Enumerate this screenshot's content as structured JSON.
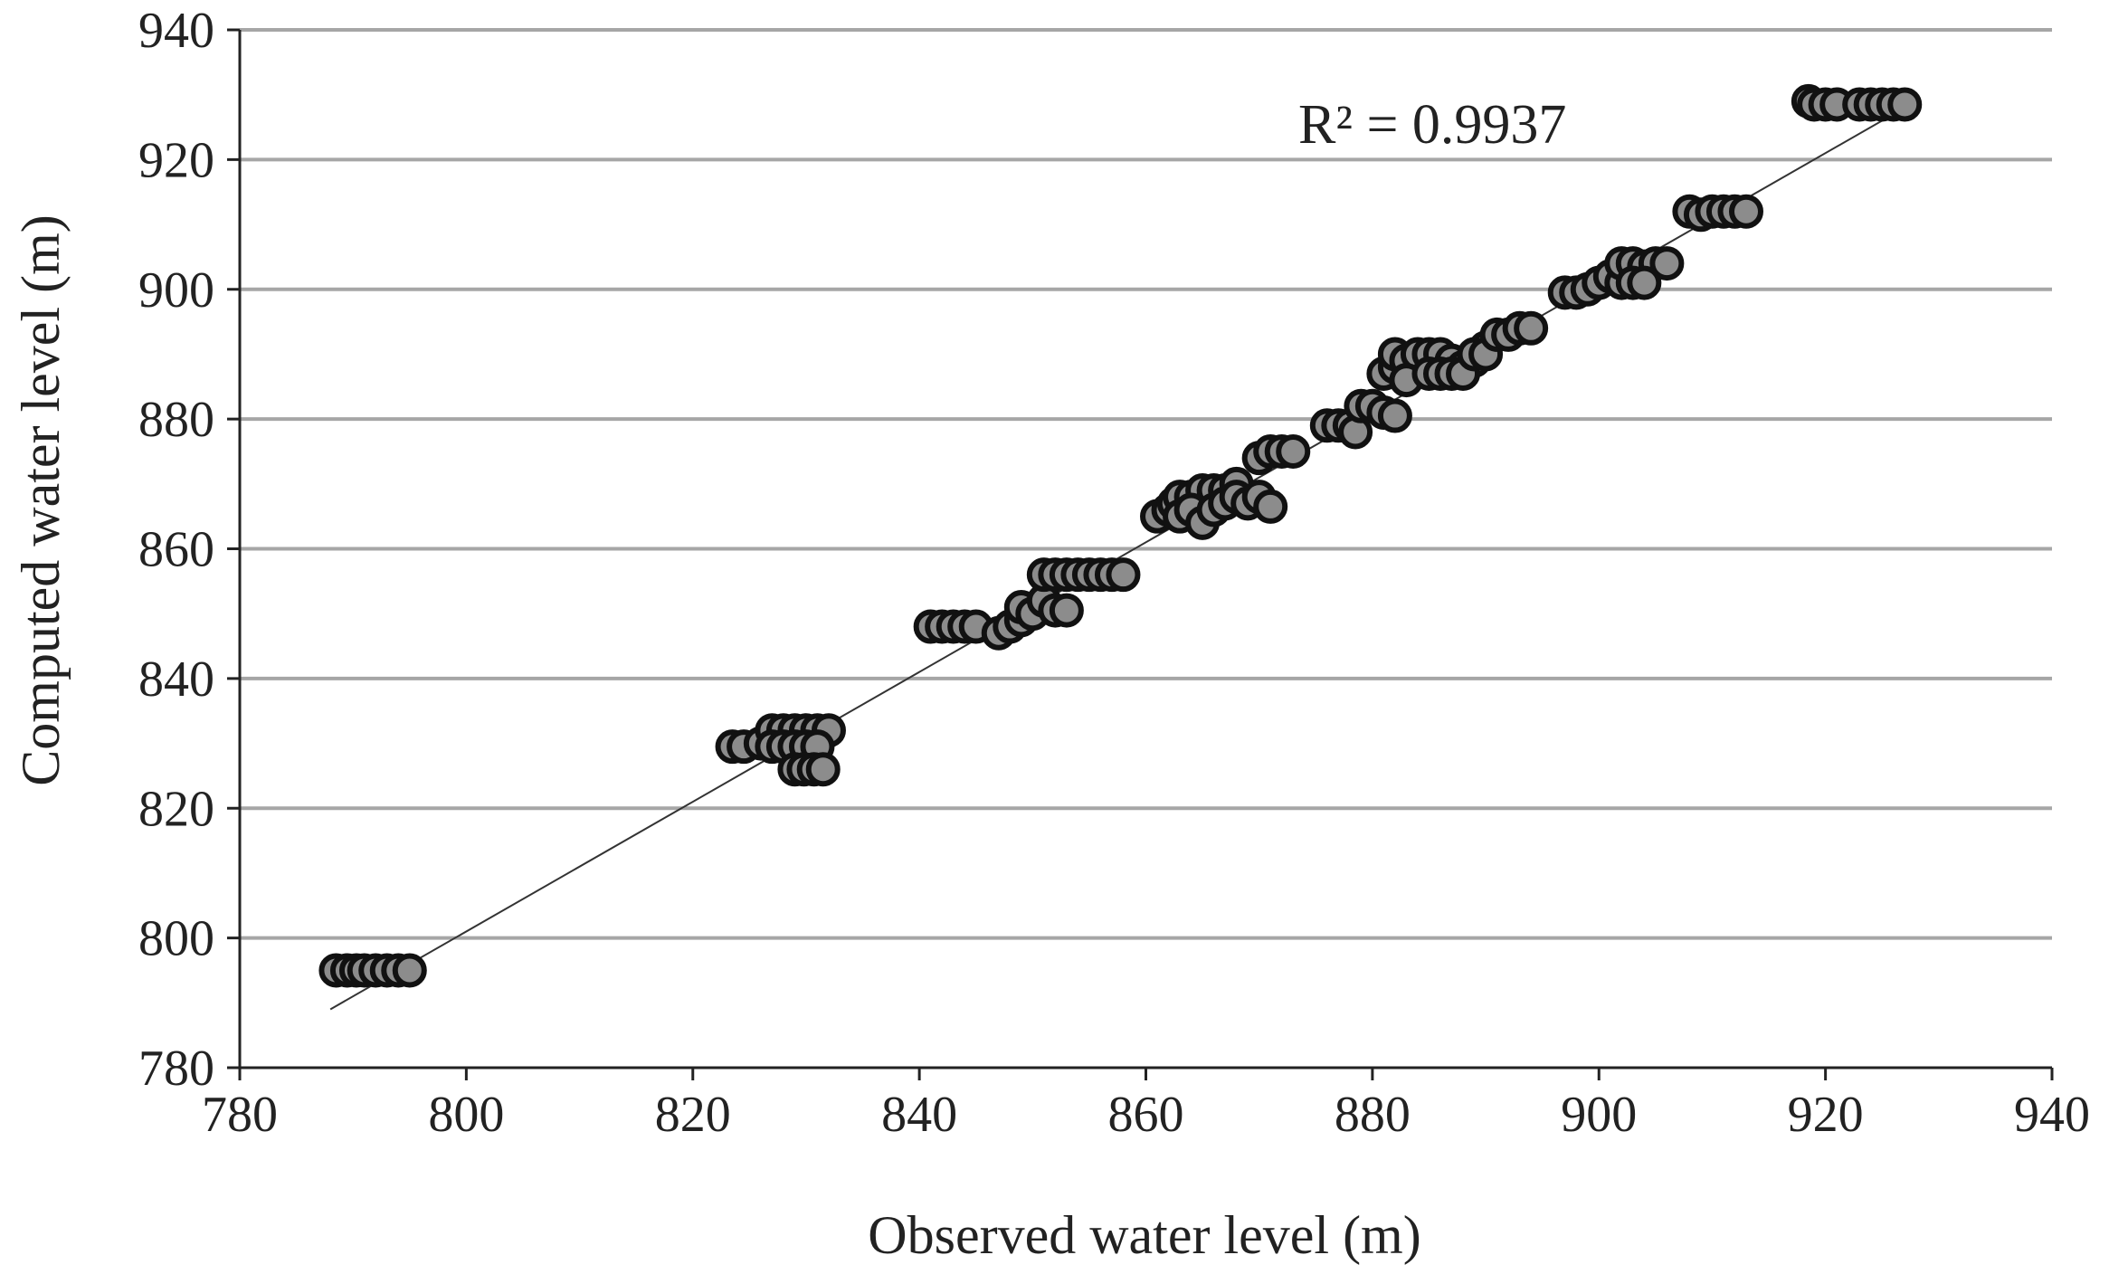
{
  "chart_data": {
    "type": "scatter",
    "title": "",
    "xlabel": "Observed water level (m)",
    "ylabel": "Computed water level (m)",
    "xlim": [
      780,
      940
    ],
    "ylim": [
      780,
      940
    ],
    "xticks": [
      780,
      800,
      820,
      840,
      860,
      880,
      900,
      920,
      940
    ],
    "yticks": [
      780,
      800,
      820,
      840,
      860,
      880,
      900,
      920,
      940
    ],
    "grid": "horizontal",
    "annotation": "R² = 0.9937",
    "trendline": {
      "x": [
        788,
        927
      ],
      "y": [
        789,
        928
      ]
    },
    "colors": {
      "marker_fill": "#8c8c8c",
      "marker_stroke": "#111111",
      "grid": "#a6a6a6",
      "trendline": "#333333",
      "axis": "#222222"
    },
    "series": [
      {
        "points": [
          [
            788.5,
            795
          ],
          [
            789.5,
            795
          ],
          [
            790.3,
            795
          ],
          [
            791,
            795
          ],
          [
            792,
            795
          ],
          [
            793,
            795
          ],
          [
            794,
            795
          ],
          [
            795,
            795
          ],
          [
            823.5,
            829.5
          ],
          [
            824.5,
            829.5
          ],
          [
            826,
            830
          ],
          [
            827,
            832
          ],
          [
            828,
            832
          ],
          [
            829,
            832
          ],
          [
            830,
            832
          ],
          [
            831,
            832
          ],
          [
            832,
            832
          ],
          [
            827,
            829.5
          ],
          [
            828,
            829.5
          ],
          [
            829,
            829.5
          ],
          [
            830,
            829.5
          ],
          [
            831,
            829.5
          ],
          [
            829,
            826
          ],
          [
            829.8,
            826
          ],
          [
            830.7,
            826
          ],
          [
            831.5,
            826
          ],
          [
            841,
            848
          ],
          [
            842,
            848
          ],
          [
            843,
            848
          ],
          [
            844,
            848
          ],
          [
            845,
            848
          ],
          [
            847,
            847
          ],
          [
            848,
            848
          ],
          [
            849,
            849
          ],
          [
            849,
            851
          ],
          [
            850,
            850
          ],
          [
            851,
            852
          ],
          [
            852,
            850.5
          ],
          [
            853,
            850.5
          ],
          [
            851,
            856
          ],
          [
            852,
            856
          ],
          [
            853,
            856
          ],
          [
            854,
            856
          ],
          [
            855,
            856
          ],
          [
            856,
            856
          ],
          [
            857,
            856
          ],
          [
            858,
            856
          ],
          [
            861,
            865
          ],
          [
            862,
            866
          ],
          [
            862.5,
            867
          ],
          [
            863,
            868
          ],
          [
            864,
            868
          ],
          [
            865,
            869
          ],
          [
            866,
            869
          ],
          [
            867,
            869
          ],
          [
            868,
            870
          ],
          [
            863,
            865
          ],
          [
            864,
            866
          ],
          [
            865,
            864
          ],
          [
            866,
            866
          ],
          [
            867,
            867
          ],
          [
            868,
            868
          ],
          [
            869,
            867
          ],
          [
            870,
            868
          ],
          [
            871,
            866.5
          ],
          [
            870,
            874
          ],
          [
            871,
            875
          ],
          [
            872,
            875
          ],
          [
            873,
            875
          ],
          [
            876,
            879
          ],
          [
            877,
            879
          ],
          [
            878,
            879
          ],
          [
            878.5,
            878
          ],
          [
            879,
            882
          ],
          [
            880,
            882
          ],
          [
            881,
            881
          ],
          [
            882,
            880.5
          ],
          [
            881,
            887
          ],
          [
            882,
            888
          ],
          [
            882,
            890
          ],
          [
            883,
            889
          ],
          [
            884,
            890
          ],
          [
            885,
            890
          ],
          [
            886,
            890
          ],
          [
            887,
            889
          ],
          [
            888,
            888
          ],
          [
            889,
            889
          ],
          [
            890,
            891
          ],
          [
            883,
            886
          ],
          [
            885,
            887
          ],
          [
            886,
            887
          ],
          [
            887,
            887
          ],
          [
            888,
            887
          ],
          [
            889,
            890
          ],
          [
            890,
            890
          ],
          [
            891,
            893
          ],
          [
            892,
            893
          ],
          [
            893,
            894
          ],
          [
            894,
            894
          ],
          [
            897,
            899.5
          ],
          [
            898,
            899.5
          ],
          [
            899,
            900
          ],
          [
            900,
            901
          ],
          [
            901,
            902
          ],
          [
            902,
            901
          ],
          [
            902,
            904
          ],
          [
            903,
            904
          ],
          [
            904,
            903.5
          ],
          [
            905,
            904
          ],
          [
            906,
            904
          ],
          [
            903,
            901
          ],
          [
            904,
            901
          ],
          [
            908,
            912
          ],
          [
            909,
            911.5
          ],
          [
            910,
            912
          ],
          [
            911,
            912
          ],
          [
            912,
            912
          ],
          [
            913,
            912
          ],
          [
            918.5,
            929
          ],
          [
            919,
            928.5
          ],
          [
            920,
            928.5
          ],
          [
            921,
            928.5
          ],
          [
            923,
            928.5
          ],
          [
            924,
            928.5
          ],
          [
            925,
            928.5
          ],
          [
            926,
            928.5
          ],
          [
            927,
            928.5
          ]
        ]
      }
    ]
  }
}
